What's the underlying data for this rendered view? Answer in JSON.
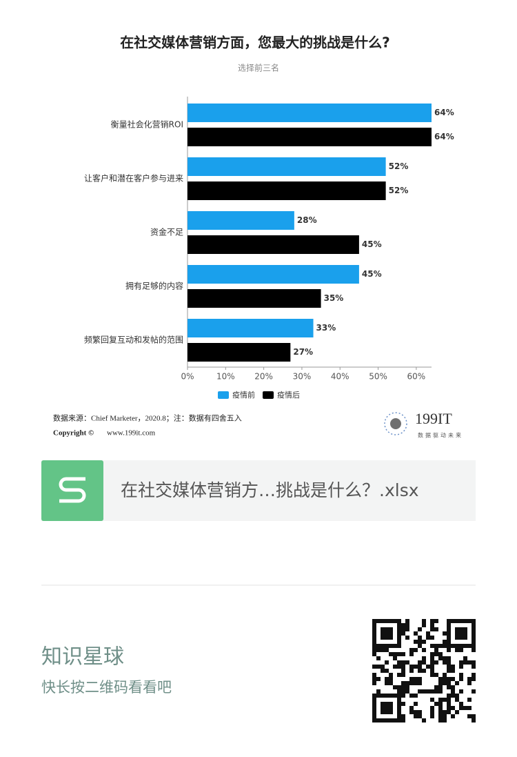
{
  "chart_data": {
    "type": "barh",
    "title": "在社交媒体营销方面，您最大的挑战是什么?",
    "subtitle": "选择前三名",
    "categories": [
      "衡量社会化营销ROI",
      "让客户和潜在客户参与进来",
      "资金不足",
      "拥有足够的内容",
      "频繁回复互动和发帖的范围"
    ],
    "series": [
      {
        "name": "疫情前",
        "color": "#1aa0ec",
        "values": [
          64,
          52,
          28,
          45,
          33
        ],
        "value_labels": [
          "64%",
          "52%",
          "28%",
          "45%",
          "33%"
        ]
      },
      {
        "name": "疫情后",
        "color": "#000000",
        "values": [
          64,
          52,
          45,
          35,
          27
        ],
        "value_labels": [
          "64%",
          "52%",
          "45%",
          "35%",
          "27%"
        ]
      }
    ],
    "xlim": [
      0,
      64
    ],
    "xticks": [
      {
        "value": 0,
        "label": "0%"
      },
      {
        "value": 10,
        "label": "10%"
      },
      {
        "value": 20,
        "label": "20%"
      },
      {
        "value": 30,
        "label": "30%"
      },
      {
        "value": 40,
        "label": "40%"
      },
      {
        "value": 50,
        "label": "50%"
      },
      {
        "value": 60,
        "label": "60%"
      }
    ],
    "legend": "bottom"
  },
  "source": "数据来源：Chief Marketer，2020.8；注：数据有四舍五入",
  "copyright": "Copyright ©",
  "website": "www.199it.com",
  "logo": {
    "name": "199IT",
    "slogan": "数据驱动未来"
  },
  "file_card": {
    "filename": "在社交媒体营销方…挑战是什么？.xlsx"
  },
  "footer": {
    "title": "知识星球",
    "subtitle": "快长按二维码看看吧"
  }
}
